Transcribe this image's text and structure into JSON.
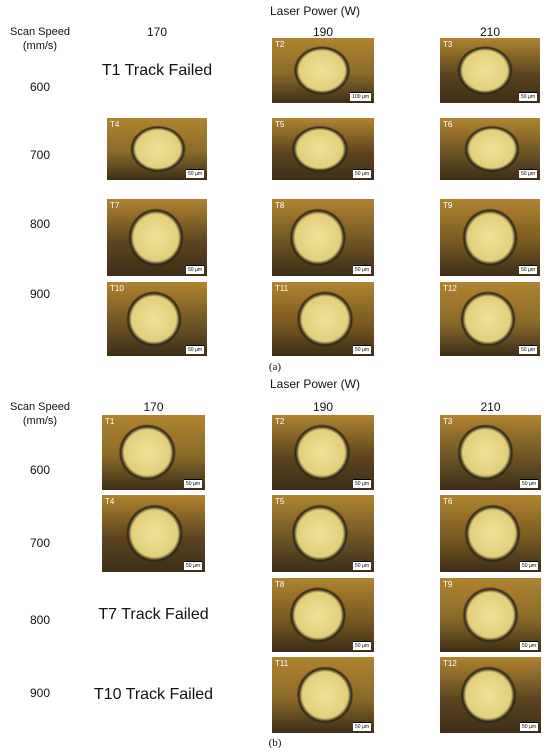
{
  "panels": [
    {
      "caption": "(a)",
      "header": "Laser Power (W)",
      "row_header_title": "Scan Speed (mm/s)",
      "columns": [
        "170",
        "190",
        "210"
      ],
      "rows": [
        {
          "speed": "600",
          "cells": [
            {
              "label": "T1 Track Failed"
            },
            {
              "label": "T2",
              "scale": "100 µm"
            },
            {
              "label": "T3",
              "scale": "50 µm"
            }
          ]
        },
        {
          "speed": "700",
          "cells": [
            {
              "label": "T4",
              "scale": "50 µm"
            },
            {
              "label": "T5",
              "scale": "50 µm"
            },
            {
              "label": "T6",
              "scale": "50 µm"
            }
          ]
        },
        {
          "speed": "800",
          "cells": [
            {
              "label": "T7",
              "scale": "50 µm"
            },
            {
              "label": "T8",
              "scale": "50 µm"
            },
            {
              "label": "T9",
              "scale": "50 µm"
            }
          ]
        },
        {
          "speed": "900",
          "cells": [
            {
              "label": "T10",
              "scale": "50 µm"
            },
            {
              "label": "T11",
              "scale": "50 µm"
            },
            {
              "label": "T12",
              "scale": "50 µm"
            }
          ]
        }
      ]
    },
    {
      "caption": "(b)",
      "header": "Laser Power (W)",
      "row_header_title": "Scan Speed (mm/s)",
      "columns": [
        "170",
        "190",
        "210"
      ],
      "rows": [
        {
          "speed": "600",
          "cells": [
            {
              "label": "T1",
              "scale": "50 µm"
            },
            {
              "label": "T2",
              "scale": "50 µm"
            },
            {
              "label": "T3",
              "scale": "50 µm"
            }
          ]
        },
        {
          "speed": "700",
          "cells": [
            {
              "label": "T4",
              "scale": "50 µm"
            },
            {
              "label": "T5",
              "scale": "50 µm"
            },
            {
              "label": "T6",
              "scale": "50 µm"
            }
          ]
        },
        {
          "speed": "800",
          "cells": [
            {
              "label": "T7 Track Failed"
            },
            {
              "label": "T8",
              "scale": "50 µm"
            },
            {
              "label": "T9",
              "scale": "50 µm"
            }
          ]
        },
        {
          "speed": "900",
          "cells": [
            {
              "label": "T10 Track Failed"
            },
            {
              "label": "T11",
              "scale": "50 µm"
            },
            {
              "label": "T12",
              "scale": "50 µm"
            }
          ]
        }
      ]
    }
  ]
}
